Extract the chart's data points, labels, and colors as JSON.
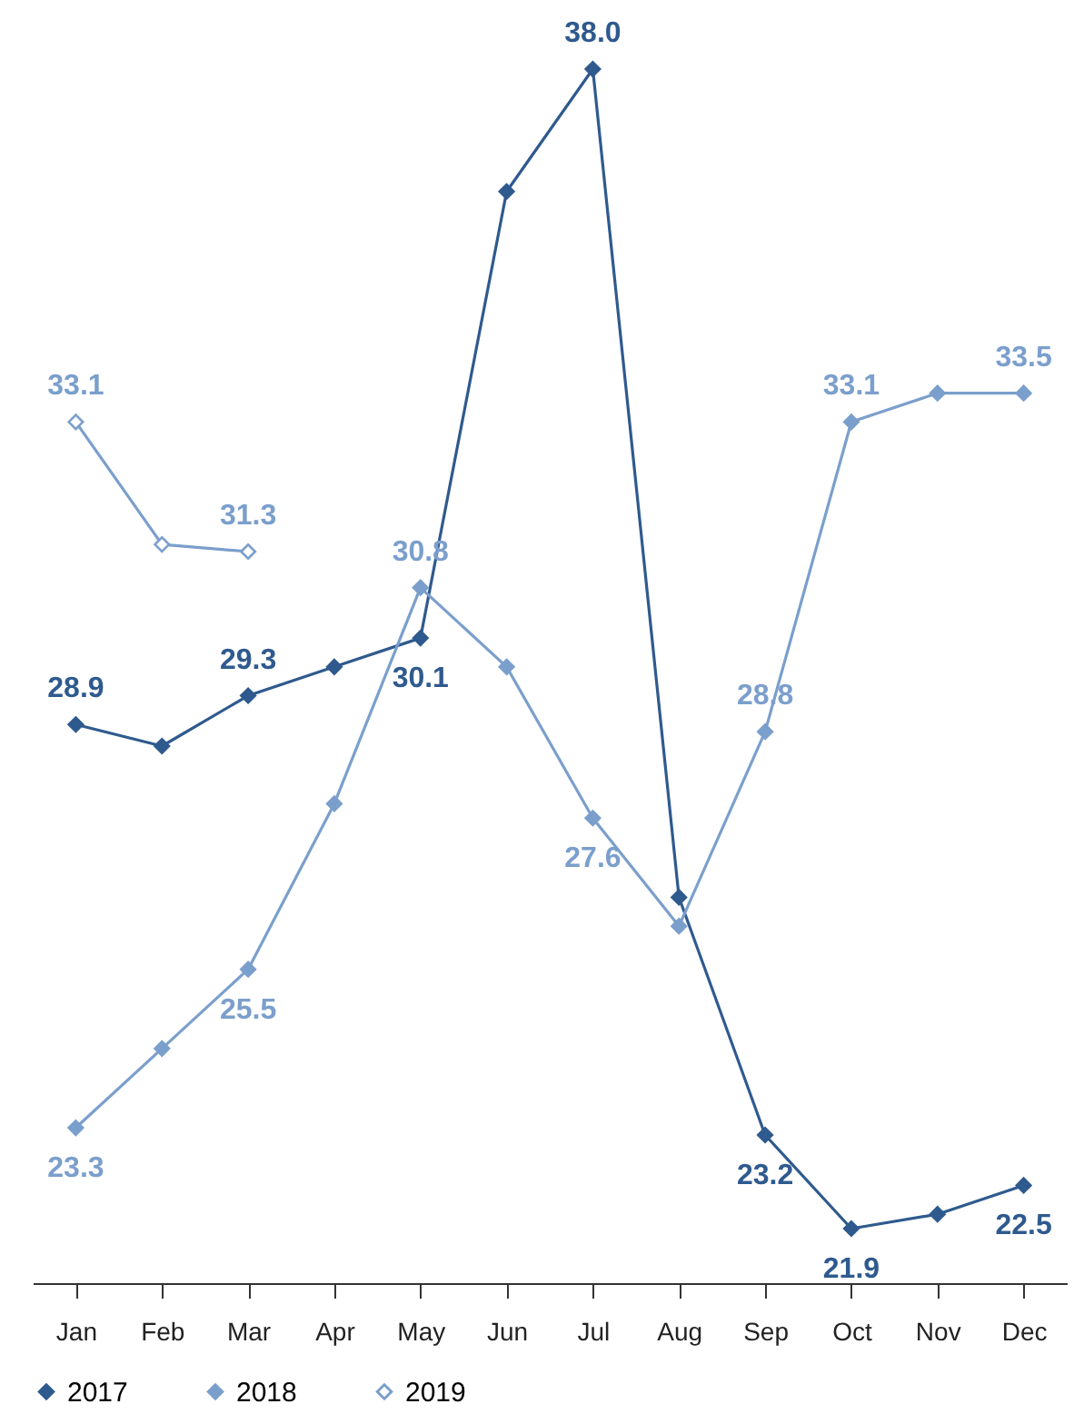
{
  "chart_data": {
    "type": "line",
    "categories": [
      "Jan",
      "Feb",
      "Mar",
      "Apr",
      "May",
      "Jun",
      "Jul",
      "Aug",
      "Sep",
      "Oct",
      "Nov",
      "Dec"
    ],
    "marker": "diamond",
    "legend": "bottom",
    "grid": false,
    "tick_labels": "x",
    "series": [
      {
        "name": "2017",
        "color": "#2f5a8e",
        "values": [
          28.9,
          28.6,
          29.3,
          29.7,
          30.1,
          36.3,
          38.0,
          26.5,
          23.2,
          21.9,
          22.1,
          22.5
        ],
        "value_labels": [
          "28.9",
          null,
          "29.3",
          null,
          "30.1",
          null,
          "38.0",
          null,
          "23.2",
          "21.9",
          null,
          "22.5"
        ]
      },
      {
        "name": "2018",
        "color": "#7b9fcc",
        "values": [
          23.3,
          24.4,
          25.5,
          27.8,
          30.8,
          29.7,
          27.6,
          26.1,
          28.8,
          33.1,
          33.5,
          33.5
        ],
        "value_labels": [
          "23.3",
          null,
          "25.5",
          null,
          "30.8",
          null,
          "27.6",
          null,
          "28.8",
          "33.1",
          null,
          "33.5"
        ]
      },
      {
        "name": "2019",
        "color": "#7b9fcc",
        "values": [
          33.1,
          31.4,
          31.3,
          null,
          null,
          null,
          null,
          null,
          null,
          null,
          null,
          null
        ],
        "value_labels": [
          "33.1",
          null,
          "31.3",
          null,
          null,
          null,
          null,
          null,
          null,
          null,
          null,
          null
        ]
      }
    ]
  }
}
